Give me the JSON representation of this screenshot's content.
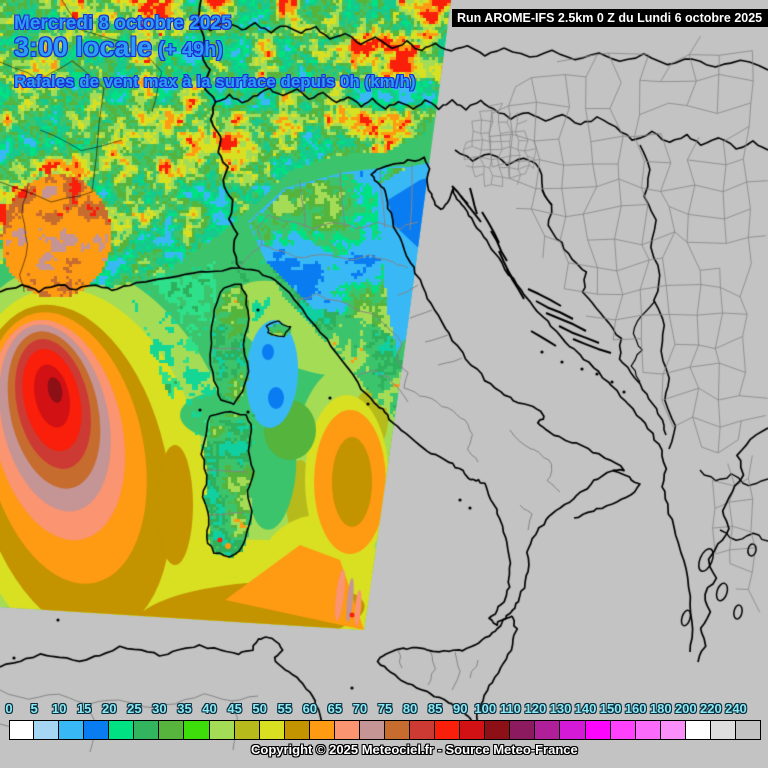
{
  "header": {
    "date": "Mercredi 8 octobre 2025",
    "time": "3:00 locale",
    "forecast_offset": "(+ 49h)",
    "parameter": "Rafales de vent max à la surface depuis 0h (km/h)"
  },
  "run_banner": {
    "text": "Run AROME-IFS 2.5km 0 Z du Lundi 6 octobre 2025"
  },
  "legend": {
    "ticks": [
      0,
      5,
      10,
      15,
      20,
      25,
      30,
      35,
      40,
      45,
      50,
      55,
      60,
      65,
      70,
      75,
      80,
      85,
      90,
      100,
      110,
      120,
      130,
      140,
      150,
      160,
      180,
      200,
      220,
      240
    ],
    "colors": [
      "#ffffff",
      "#a5d7f5",
      "#38b9f6",
      "#0a7cf2",
      "#00e183",
      "#33b45f",
      "#57b43c",
      "#3ede0b",
      "#a5dc56",
      "#b7ba1b",
      "#d9e021",
      "#c39300",
      "#fe9b12",
      "#fa9471",
      "#c59495",
      "#c76c2f",
      "#cd3a34",
      "#f91f0a",
      "#d21114",
      "#8c1016",
      "#8b1a5e",
      "#b01f9a",
      "#d51ad7",
      "#fc05fc",
      "#fd41fd",
      "#fa6bfa",
      "#fa8ffa",
      "#ffffff",
      "#dedede",
      "#c3c3c3"
    ]
  },
  "footer": {
    "copyright": "Copyright © 2025 Meteociel.fr - Source Meteo-France"
  },
  "colors": {
    "title_text": "#2b9df5",
    "title_outline": "#1c2fd4",
    "tick_text": "#8aeaf6",
    "map_background": "#c3c3c3",
    "coastline": "#000000",
    "admin_border": "#858585"
  }
}
